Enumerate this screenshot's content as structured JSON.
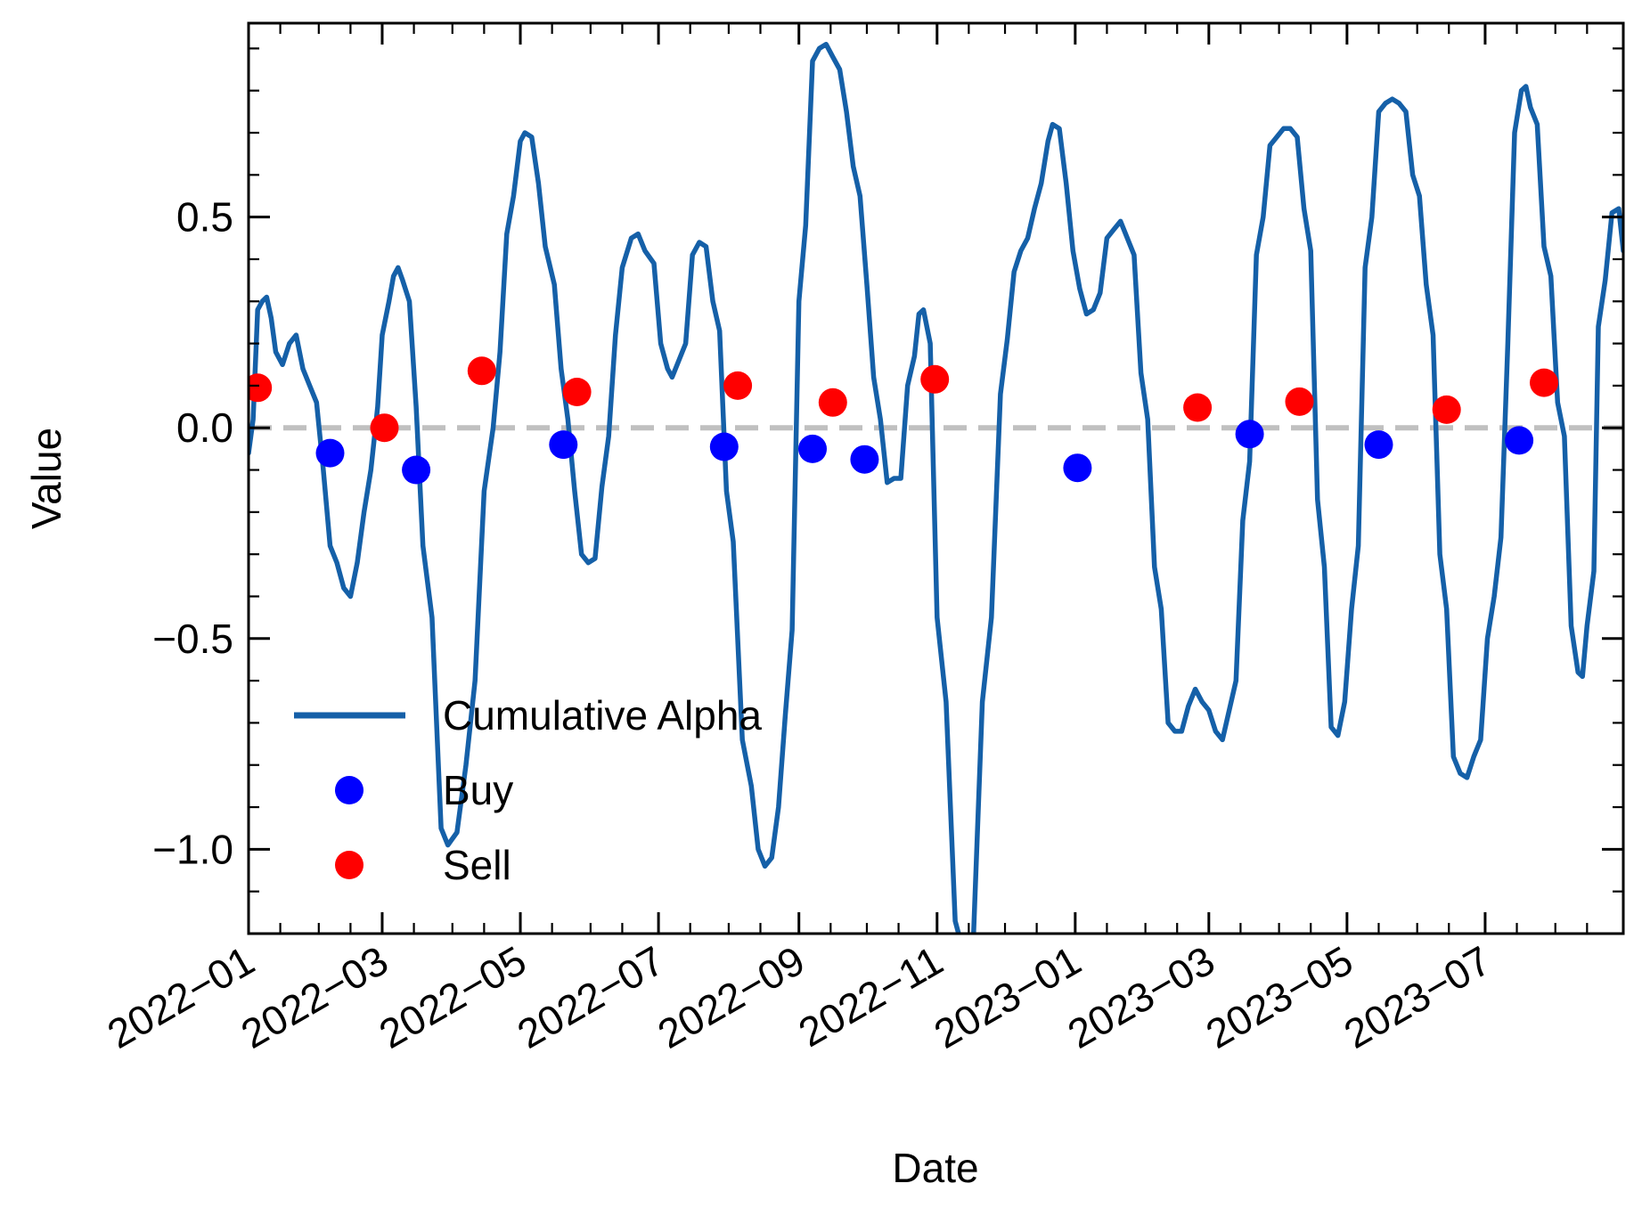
{
  "chart_data": {
    "type": "line",
    "xlabel": "Date",
    "ylabel": "Value",
    "xlim": [
      "2022-01-01",
      "2023-08-31"
    ],
    "ylim": [
      -1.2,
      0.96
    ],
    "y_ticks": [
      {
        "value": -1.0,
        "label": "−1.0"
      },
      {
        "value": -0.5,
        "label": "−0.5"
      },
      {
        "value": 0.0,
        "label": "0.0"
      },
      {
        "value": 0.5,
        "label": "0.5"
      }
    ],
    "x_ticks": [
      {
        "value": "2022-01-01",
        "label": "2022−01"
      },
      {
        "value": "2022-03-01",
        "label": "2022−03"
      },
      {
        "value": "2022-05-01",
        "label": "2022−05"
      },
      {
        "value": "2022-07-01",
        "label": "2022−07"
      },
      {
        "value": "2022-09-01",
        "label": "2022−09"
      },
      {
        "value": "2022-11-01",
        "label": "2022−11"
      },
      {
        "value": "2023-01-01",
        "label": "2023−01"
      },
      {
        "value": "2023-03-01",
        "label": "2023−03"
      },
      {
        "value": "2023-05-01",
        "label": "2023−05"
      },
      {
        "value": "2023-07-01",
        "label": "2023−07"
      }
    ],
    "reference_line": {
      "y": 0,
      "style": "dashed",
      "color": "#c0c0c0"
    },
    "legend": {
      "placement": "lower-left",
      "entries": [
        "Cumulative Alpha",
        "Buy",
        "Sell"
      ]
    },
    "colors": {
      "line": "#1560a8",
      "buy": "#0000ff",
      "sell": "#ff0000"
    },
    "series": [
      {
        "name": "Cumulative Alpha",
        "kind": "line",
        "points": [
          [
            "2022-01-01",
            -0.06
          ],
          [
            "2022-01-03",
            0.02
          ],
          [
            "2022-01-05",
            0.28
          ],
          [
            "2022-01-07",
            0.3
          ],
          [
            "2022-01-09",
            0.31
          ],
          [
            "2022-01-11",
            0.26
          ],
          [
            "2022-01-13",
            0.18
          ],
          [
            "2022-01-16",
            0.15
          ],
          [
            "2022-01-19",
            0.2
          ],
          [
            "2022-01-22",
            0.22
          ],
          [
            "2022-01-25",
            0.14
          ],
          [
            "2022-01-28",
            0.1
          ],
          [
            "2022-01-31",
            0.06
          ],
          [
            "2022-02-03",
            -0.1
          ],
          [
            "2022-02-06",
            -0.28
          ],
          [
            "2022-02-09",
            -0.32
          ],
          [
            "2022-02-12",
            -0.38
          ],
          [
            "2022-02-15",
            -0.4
          ],
          [
            "2022-02-18",
            -0.32
          ],
          [
            "2022-02-21",
            -0.2
          ],
          [
            "2022-02-24",
            -0.1
          ],
          [
            "2022-02-27",
            0.05
          ],
          [
            "2022-03-01",
            0.22
          ],
          [
            "2022-03-04",
            0.3
          ],
          [
            "2022-03-06",
            0.36
          ],
          [
            "2022-03-08",
            0.38
          ],
          [
            "2022-03-10",
            0.35
          ],
          [
            "2022-03-13",
            0.3
          ],
          [
            "2022-03-16",
            0.05
          ],
          [
            "2022-03-19",
            -0.28
          ],
          [
            "2022-03-23",
            -0.45
          ],
          [
            "2022-03-27",
            -0.95
          ],
          [
            "2022-03-30",
            -0.99
          ],
          [
            "2022-04-03",
            -0.96
          ],
          [
            "2022-04-07",
            -0.8
          ],
          [
            "2022-04-11",
            -0.6
          ],
          [
            "2022-04-15",
            -0.15
          ],
          [
            "2022-04-19",
            0.0
          ],
          [
            "2022-04-22",
            0.18
          ],
          [
            "2022-04-25",
            0.46
          ],
          [
            "2022-04-28",
            0.55
          ],
          [
            "2022-05-01",
            0.68
          ],
          [
            "2022-05-03",
            0.7
          ],
          [
            "2022-05-06",
            0.69
          ],
          [
            "2022-05-09",
            0.58
          ],
          [
            "2022-05-12",
            0.43
          ],
          [
            "2022-05-16",
            0.34
          ],
          [
            "2022-05-19",
            0.14
          ],
          [
            "2022-05-22",
            0.02
          ],
          [
            "2022-05-25",
            -0.15
          ],
          [
            "2022-05-28",
            -0.3
          ],
          [
            "2022-05-31",
            -0.32
          ],
          [
            "2022-06-03",
            -0.31
          ],
          [
            "2022-06-06",
            -0.14
          ],
          [
            "2022-06-09",
            -0.02
          ],
          [
            "2022-06-12",
            0.22
          ],
          [
            "2022-06-15",
            0.38
          ],
          [
            "2022-06-19",
            0.45
          ],
          [
            "2022-06-22",
            0.46
          ],
          [
            "2022-06-25",
            0.42
          ],
          [
            "2022-06-29",
            0.39
          ],
          [
            "2022-07-02",
            0.2
          ],
          [
            "2022-07-05",
            0.14
          ],
          [
            "2022-07-07",
            0.12
          ],
          [
            "2022-07-10",
            0.16
          ],
          [
            "2022-07-13",
            0.2
          ],
          [
            "2022-07-16",
            0.41
          ],
          [
            "2022-07-19",
            0.44
          ],
          [
            "2022-07-22",
            0.43
          ],
          [
            "2022-07-25",
            0.3
          ],
          [
            "2022-07-28",
            0.23
          ],
          [
            "2022-07-31",
            -0.15
          ],
          [
            "2022-08-03",
            -0.27
          ],
          [
            "2022-08-07",
            -0.74
          ],
          [
            "2022-08-11",
            -0.85
          ],
          [
            "2022-08-14",
            -1.0
          ],
          [
            "2022-08-17",
            -1.04
          ],
          [
            "2022-08-20",
            -1.02
          ],
          [
            "2022-08-23",
            -0.9
          ],
          [
            "2022-08-26",
            -0.68
          ],
          [
            "2022-08-29",
            -0.48
          ],
          [
            "2022-09-01",
            0.3
          ],
          [
            "2022-09-04",
            0.48
          ],
          [
            "2022-09-07",
            0.87
          ],
          [
            "2022-09-10",
            0.9
          ],
          [
            "2022-09-13",
            0.91
          ],
          [
            "2022-09-16",
            0.88
          ],
          [
            "2022-09-19",
            0.85
          ],
          [
            "2022-09-22",
            0.75
          ],
          [
            "2022-09-25",
            0.62
          ],
          [
            "2022-09-28",
            0.55
          ],
          [
            "2022-10-01",
            0.34
          ],
          [
            "2022-10-04",
            0.12
          ],
          [
            "2022-10-07",
            0.02
          ],
          [
            "2022-10-10",
            -0.13
          ],
          [
            "2022-10-13",
            -0.12
          ],
          [
            "2022-10-16",
            -0.12
          ],
          [
            "2022-10-19",
            0.1
          ],
          [
            "2022-10-22",
            0.17
          ],
          [
            "2022-10-24",
            0.27
          ],
          [
            "2022-10-26",
            0.28
          ],
          [
            "2022-10-29",
            0.2
          ],
          [
            "2022-11-01",
            -0.45
          ],
          [
            "2022-11-05",
            -0.65
          ],
          [
            "2022-11-09",
            -1.17
          ],
          [
            "2022-11-13",
            -1.25
          ],
          [
            "2022-11-17",
            -1.22
          ],
          [
            "2022-11-21",
            -0.65
          ],
          [
            "2022-11-25",
            -0.45
          ],
          [
            "2022-11-29",
            0.08
          ],
          [
            "2022-12-02",
            0.21
          ],
          [
            "2022-12-05",
            0.37
          ],
          [
            "2022-12-08",
            0.42
          ],
          [
            "2022-12-11",
            0.45
          ],
          [
            "2022-12-14",
            0.52
          ],
          [
            "2022-12-17",
            0.58
          ],
          [
            "2022-12-20",
            0.68
          ],
          [
            "2022-12-22",
            0.72
          ],
          [
            "2022-12-25",
            0.71
          ],
          [
            "2022-12-28",
            0.58
          ],
          [
            "2022-12-31",
            0.42
          ],
          [
            "2023-01-03",
            0.33
          ],
          [
            "2023-01-06",
            0.27
          ],
          [
            "2023-01-09",
            0.28
          ],
          [
            "2023-01-12",
            0.32
          ],
          [
            "2023-01-15",
            0.45
          ],
          [
            "2023-01-18",
            0.47
          ],
          [
            "2023-01-21",
            0.49
          ],
          [
            "2023-01-24",
            0.45
          ],
          [
            "2023-01-27",
            0.41
          ],
          [
            "2023-01-30",
            0.13
          ],
          [
            "2023-02-02",
            0.02
          ],
          [
            "2023-02-05",
            -0.33
          ],
          [
            "2023-02-08",
            -0.43
          ],
          [
            "2023-02-11",
            -0.7
          ],
          [
            "2023-02-14",
            -0.72
          ],
          [
            "2023-02-17",
            -0.72
          ],
          [
            "2023-02-20",
            -0.66
          ],
          [
            "2023-02-23",
            -0.62
          ],
          [
            "2023-02-26",
            -0.65
          ],
          [
            "2023-03-01",
            -0.67
          ],
          [
            "2023-03-04",
            -0.72
          ],
          [
            "2023-03-07",
            -0.74
          ],
          [
            "2023-03-10",
            -0.67
          ],
          [
            "2023-03-13",
            -0.6
          ],
          [
            "2023-03-16",
            -0.22
          ],
          [
            "2023-03-19",
            -0.08
          ],
          [
            "2023-03-22",
            0.41
          ],
          [
            "2023-03-25",
            0.5
          ],
          [
            "2023-03-28",
            0.67
          ],
          [
            "2023-03-31",
            0.69
          ],
          [
            "2023-04-03",
            0.71
          ],
          [
            "2023-04-06",
            0.71
          ],
          [
            "2023-04-09",
            0.69
          ],
          [
            "2023-04-12",
            0.52
          ],
          [
            "2023-04-15",
            0.42
          ],
          [
            "2023-04-18",
            -0.17
          ],
          [
            "2023-04-21",
            -0.33
          ],
          [
            "2023-04-24",
            -0.71
          ],
          [
            "2023-04-27",
            -0.73
          ],
          [
            "2023-04-30",
            -0.65
          ],
          [
            "2023-05-03",
            -0.43
          ],
          [
            "2023-05-06",
            -0.28
          ],
          [
            "2023-05-09",
            0.38
          ],
          [
            "2023-05-12",
            0.5
          ],
          [
            "2023-05-15",
            0.75
          ],
          [
            "2023-05-18",
            0.77
          ],
          [
            "2023-05-21",
            0.78
          ],
          [
            "2023-05-24",
            0.77
          ],
          [
            "2023-05-27",
            0.75
          ],
          [
            "2023-05-30",
            0.6
          ],
          [
            "2023-06-02",
            0.55
          ],
          [
            "2023-06-05",
            0.34
          ],
          [
            "2023-06-08",
            0.22
          ],
          [
            "2023-06-11",
            -0.3
          ],
          [
            "2023-06-14",
            -0.43
          ],
          [
            "2023-06-17",
            -0.78
          ],
          [
            "2023-06-20",
            -0.82
          ],
          [
            "2023-06-23",
            -0.83
          ],
          [
            "2023-06-26",
            -0.78
          ],
          [
            "2023-06-29",
            -0.74
          ],
          [
            "2023-07-02",
            -0.5
          ],
          [
            "2023-07-05",
            -0.4
          ],
          [
            "2023-07-08",
            -0.26
          ],
          [
            "2023-07-11",
            0.2
          ],
          [
            "2023-07-14",
            0.7
          ],
          [
            "2023-07-17",
            0.8
          ],
          [
            "2023-07-19",
            0.81
          ],
          [
            "2023-07-21",
            0.76
          ],
          [
            "2023-07-24",
            0.72
          ],
          [
            "2023-07-27",
            0.43
          ],
          [
            "2023-07-30",
            0.36
          ],
          [
            "2023-08-02",
            0.06
          ],
          [
            "2023-08-05",
            -0.02
          ],
          [
            "2023-08-08",
            -0.47
          ],
          [
            "2023-08-11",
            -0.58
          ],
          [
            "2023-08-13",
            -0.59
          ],
          [
            "2023-08-15",
            -0.47
          ],
          [
            "2023-08-18",
            -0.34
          ],
          [
            "2023-08-20",
            0.24
          ],
          [
            "2023-08-23",
            0.35
          ],
          [
            "2023-08-26",
            0.51
          ],
          [
            "2023-08-29",
            0.52
          ],
          [
            "2023-08-31",
            0.42
          ]
        ]
      },
      {
        "name": "Buy",
        "kind": "scatter",
        "points": [
          [
            "2022-02-06",
            -0.06
          ],
          [
            "2022-03-16",
            -0.1
          ],
          [
            "2022-05-20",
            -0.04
          ],
          [
            "2022-07-30",
            -0.045
          ],
          [
            "2022-09-07",
            -0.05
          ],
          [
            "2022-09-30",
            -0.075
          ],
          [
            "2023-01-02",
            -0.095
          ],
          [
            "2023-03-19",
            -0.015
          ],
          [
            "2023-05-15",
            -0.04
          ],
          [
            "2023-07-16",
            -0.03
          ]
        ]
      },
      {
        "name": "Sell",
        "kind": "scatter",
        "points": [
          [
            "2022-01-05",
            0.095
          ],
          [
            "2022-03-02",
            0.0
          ],
          [
            "2022-04-14",
            0.135
          ],
          [
            "2022-05-26",
            0.085
          ],
          [
            "2022-08-05",
            0.1
          ],
          [
            "2022-09-16",
            0.06
          ],
          [
            "2022-10-31",
            0.115
          ],
          [
            "2023-02-24",
            0.048
          ],
          [
            "2023-04-10",
            0.062
          ],
          [
            "2023-06-14",
            0.043
          ],
          [
            "2023-07-27",
            0.107
          ]
        ]
      }
    ]
  }
}
